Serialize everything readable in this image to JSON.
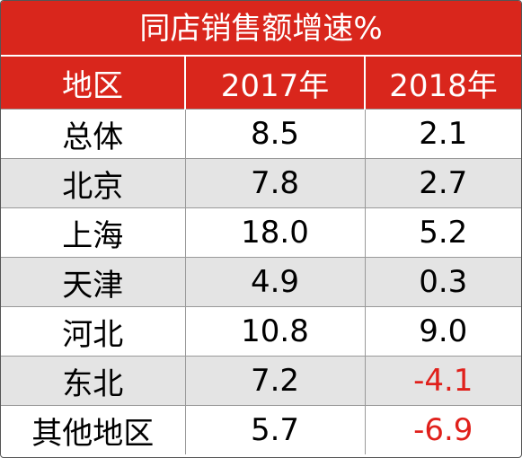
{
  "table": {
    "title": "同店销售额增速%",
    "header": [
      "地区",
      "2017年",
      "2018年"
    ],
    "rows": [
      [
        "总体",
        "8.5",
        "2.1"
      ],
      [
        "北京",
        "7.8",
        "2.7"
      ],
      [
        "上海",
        "18.0",
        "5.2"
      ],
      [
        "天津",
        "4.9",
        "0.3"
      ],
      [
        "河北",
        "10.8",
        "9.0"
      ],
      [
        "东北",
        "7.2",
        "-4.1"
      ],
      [
        "其他地区",
        "5.7",
        "-6.9"
      ]
    ]
  }
}
